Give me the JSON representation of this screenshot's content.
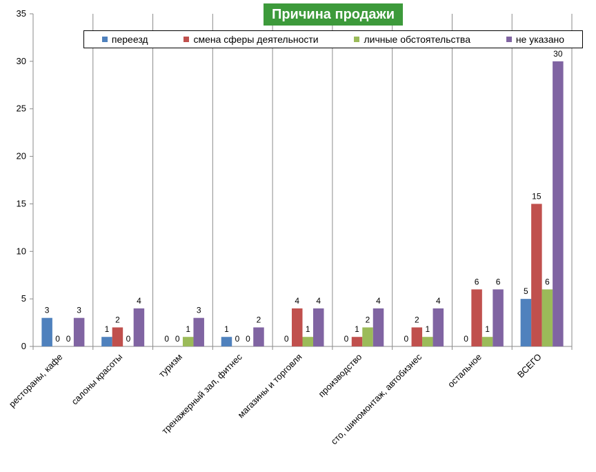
{
  "chart_data": {
    "type": "bar",
    "title": "Причина продажи",
    "categories": [
      "рестораны, кафе",
      "салоны красоты",
      "туризм",
      "тренажерный зал, фитнес",
      "магазины и торговля",
      "производство",
      "сто, шиномонтаж, автобизнес",
      "остальное",
      "ВСЕГО"
    ],
    "series": [
      {
        "name": "переезд",
        "color": "#4f81bd",
        "values": [
          3,
          1,
          0,
          1,
          0,
          0,
          0,
          0,
          5
        ]
      },
      {
        "name": "смена сферы деятельности",
        "color": "#c0504d",
        "values": [
          0,
          2,
          0,
          0,
          4,
          1,
          2,
          6,
          15
        ]
      },
      {
        "name": "личные обстоятельства",
        "color": "#9bbb59",
        "values": [
          0,
          0,
          1,
          0,
          1,
          2,
          1,
          1,
          6
        ]
      },
      {
        "name": "не указано",
        "color": "#8064a2",
        "values": [
          3,
          4,
          3,
          2,
          4,
          4,
          4,
          6,
          30
        ]
      }
    ],
    "ylim": [
      0,
      35
    ],
    "yticks": [
      "0",
      "5",
      "10",
      "15",
      "20",
      "25",
      "30",
      "35"
    ],
    "grid": "vertical category separators",
    "legend_position": "top"
  }
}
